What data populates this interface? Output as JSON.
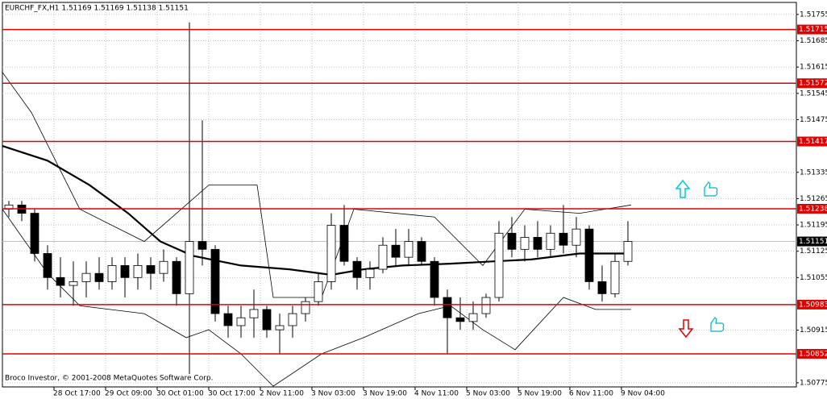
{
  "chart_data": {
    "type": "candlestick",
    "title": "EURCHF_FX,H1  1.51169 1.51169 1.51138 1.51151",
    "annotation": "Broco Investor, © 2001-2008 MetaQuotes Software Corp.",
    "xlim": [
      0,
      246.25
    ],
    "ylim": [
      1.50764,
      1.51787
    ],
    "grid": true,
    "yticks": [
      1.51755,
      1.51685,
      1.51615,
      1.51545,
      1.51475,
      1.51335,
      1.51265,
      1.51195,
      1.51125,
      1.51055,
      1.50915,
      1.50775
    ],
    "xticks": [
      {
        "value": 16,
        "label": "28 Oct 17:00"
      },
      {
        "value": 32,
        "label": "29 Oct 09:00"
      },
      {
        "value": 48,
        "label": "30 Oct 01:00"
      },
      {
        "value": 64,
        "label": "30 Oct 17:00"
      },
      {
        "value": 80,
        "label": "2 Nov 11:00"
      },
      {
        "value": 96,
        "label": "3 Nov 03:00"
      },
      {
        "value": 112,
        "label": "3 Nov 19:00"
      },
      {
        "value": 128,
        "label": "4 Nov 11:00"
      },
      {
        "value": 144,
        "label": "5 Nov 03:00"
      },
      {
        "value": 160,
        "label": "5 Nov 19:00"
      },
      {
        "value": 176,
        "label": "6 Nov 11:00"
      },
      {
        "value": 192,
        "label": "9 Nov 04:00"
      }
    ],
    "x": [
      2,
      6,
      10,
      14,
      18,
      22,
      26,
      30,
      34,
      38,
      42,
      46,
      50,
      54,
      58,
      62,
      66,
      70,
      74,
      78,
      82,
      86,
      90,
      94,
      98,
      102,
      106,
      110,
      114,
      118,
      122,
      126,
      130,
      134,
      138,
      142,
      146,
      150,
      154,
      158,
      162,
      166,
      170,
      174,
      178,
      182,
      186,
      190,
      194
    ],
    "open": [
      1.51237,
      1.51248,
      1.51226,
      1.51119,
      1.51055,
      1.51034,
      1.51044,
      1.51066,
      1.51044,
      1.51087,
      1.51055,
      1.51087,
      1.51066,
      1.51098,
      1.51012,
      1.51151,
      1.5113,
      1.50959,
      1.50927,
      1.50948,
      1.5097,
      1.50916,
      1.50927,
      1.50959,
      1.50991,
      1.51044,
      1.51194,
      1.51098,
      1.51055,
      1.51077,
      1.51141,
      1.51109,
      1.51151,
      1.51098,
      1.51002,
      1.50948,
      1.50938,
      1.50959,
      1.51002,
      1.51173,
      1.5113,
      1.51162,
      1.5113,
      1.51173,
      1.51141,
      1.51184,
      1.51044,
      1.51012,
      1.51098
    ],
    "high": [
      1.51259,
      1.51259,
      1.51237,
      1.51141,
      1.51109,
      1.51098,
      1.51098,
      1.51109,
      1.51109,
      1.51109,
      1.51119,
      1.51109,
      1.5113,
      1.51109,
      1.51734,
      1.51473,
      1.51141,
      1.5098,
      1.5098,
      1.51023,
      1.5098,
      1.50959,
      1.5098,
      1.51002,
      1.51066,
      1.51226,
      1.51248,
      1.51109,
      1.51098,
      1.51162,
      1.51184,
      1.51184,
      1.51162,
      1.51109,
      1.51023,
      1.51002,
      1.50991,
      1.51012,
      1.51205,
      1.51216,
      1.51194,
      1.51205,
      1.51194,
      1.51248,
      1.51216,
      1.51194,
      1.51087,
      1.51119,
      1.51205
    ],
    "low": [
      1.51216,
      1.51205,
      1.51098,
      1.51023,
      1.51002,
      1.5098,
      1.51002,
      1.51023,
      1.51023,
      1.51002,
      1.51023,
      1.51023,
      1.51044,
      1.5098,
      1.50798,
      1.51087,
      1.50938,
      1.50895,
      1.50895,
      1.50895,
      1.50895,
      1.50852,
      1.50895,
      1.50938,
      1.5098,
      1.51023,
      1.51087,
      1.51023,
      1.51023,
      1.51066,
      1.51087,
      1.51087,
      1.51087,
      1.5098,
      1.50852,
      1.50916,
      1.50916,
      1.50948,
      1.50991,
      1.51109,
      1.51098,
      1.51109,
      1.51109,
      1.51119,
      1.51109,
      1.51023,
      1.50991,
      1.51002,
      1.51087
    ],
    "close": [
      1.51248,
      1.51226,
      1.51119,
      1.51055,
      1.51034,
      1.51044,
      1.51066,
      1.51044,
      1.51087,
      1.51055,
      1.51087,
      1.51066,
      1.51098,
      1.51012,
      1.51151,
      1.5113,
      1.50959,
      1.50927,
      1.50948,
      1.5097,
      1.50916,
      1.50927,
      1.50959,
      1.50991,
      1.51044,
      1.51194,
      1.51098,
      1.51055,
      1.51077,
      1.51141,
      1.51109,
      1.51151,
      1.51098,
      1.51002,
      1.50948,
      1.50938,
      1.50959,
      1.51002,
      1.51173,
      1.5113,
      1.51162,
      1.5113,
      1.51173,
      1.51141,
      1.51184,
      1.51044,
      1.51012,
      1.51098,
      1.51151
    ],
    "overlays": [
      {
        "color": "#000000",
        "width": 2.2,
        "x": [
          0,
          14,
          27,
          39,
          49,
          59,
          74,
          89,
          102,
          112,
          124,
          139,
          152,
          164,
          179,
          195
        ],
        "values": [
          1.51405,
          1.51366,
          1.51301,
          1.51226,
          1.51151,
          1.51113,
          1.51087,
          1.51077,
          1.51062,
          1.51077,
          1.51087,
          1.51092,
          1.51098,
          1.51103,
          1.51119,
          1.51119
        ]
      },
      {
        "color": "#000000",
        "width": 0.8,
        "x": [
          0,
          9,
          24,
          44,
          64,
          79,
          84,
          99,
          109,
          134,
          149,
          162,
          179,
          195
        ],
        "values": [
          1.51601,
          1.51494,
          1.51237,
          1.51151,
          1.51301,
          1.51301,
          1.51002,
          1.51002,
          1.51237,
          1.51216,
          1.51087,
          1.51237,
          1.51226,
          1.51248
        ]
      },
      {
        "color": "#000000",
        "width": 0.8,
        "x": [
          0,
          14,
          24,
          44,
          57,
          64,
          74,
          84,
          99,
          112,
          129,
          139,
          149,
          159,
          174,
          184,
          195
        ],
        "values": [
          1.51237,
          1.51066,
          1.5098,
          1.50959,
          1.50895,
          1.50916,
          1.50852,
          1.50766,
          1.50852,
          1.50895,
          1.50959,
          1.5098,
          1.50916,
          1.50863,
          1.51002,
          1.5097,
          1.5097
        ]
      }
    ],
    "levels": [
      1.51715,
      1.51572,
      1.51417,
      1.51238,
      1.50983,
      1.50852
    ],
    "level_color": "#e00000",
    "bid": 1.51151
  }
}
